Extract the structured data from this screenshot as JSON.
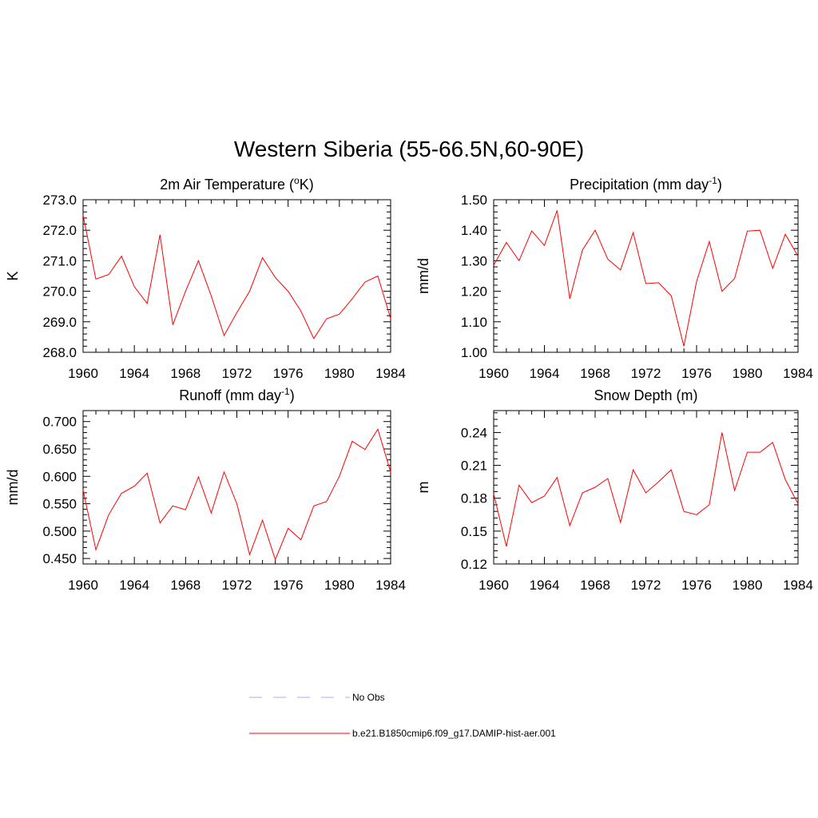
{
  "title": "Western Siberia (55-66.5N,60-90E)",
  "colors": {
    "model": "#ff0000",
    "obs": "#aaaaff"
  },
  "legend": {
    "position": "bottom",
    "items": [
      {
        "label": "No Obs",
        "style": "dashed",
        "color": "#aaaaff"
      },
      {
        "label": "b.e21.B1850cmip6.f09_g17.DAMIP-hist-aer.001",
        "style": "solid",
        "color": "#ff0000"
      }
    ]
  },
  "chart_data": [
    {
      "type": "line",
      "title": "2m Air Temperature (",
      "title_sup": "o",
      "title_tail": "K)",
      "ylabel": "K",
      "xlim": [
        1960,
        1984
      ],
      "ylim": [
        268.0,
        273.0
      ],
      "xticks": [
        "1960",
        "1964",
        "1968",
        "1972",
        "1976",
        "1980",
        "1984"
      ],
      "yticks": [
        "268.0",
        "269.0",
        "270.0",
        "271.0",
        "272.0",
        "273.0"
      ],
      "x": [
        1960,
        1961,
        1962,
        1963,
        1964,
        1965,
        1966,
        1967,
        1968,
        1969,
        1970,
        1971,
        1972,
        1973,
        1974,
        1975,
        1976,
        1977,
        1978,
        1979,
        1980,
        1981,
        1982,
        1983,
        1984
      ],
      "values": [
        272.5,
        270.4,
        270.55,
        271.15,
        270.15,
        269.6,
        271.85,
        268.9,
        270.0,
        271.0,
        269.85,
        268.55,
        269.3,
        270.0,
        271.1,
        270.45,
        270.0,
        269.35,
        268.45,
        269.1,
        269.25,
        269.75,
        270.3,
        270.5,
        269.1
      ]
    },
    {
      "type": "line",
      "title": "Precipitation (mm day",
      "title_sup": "-1",
      "title_tail": ")",
      "ylabel": "mm/d",
      "xlim": [
        1960,
        1984
      ],
      "ylim": [
        1.0,
        1.5
      ],
      "xticks": [
        "1960",
        "1964",
        "1968",
        "1972",
        "1976",
        "1980",
        "1984"
      ],
      "yticks": [
        "1.00",
        "1.10",
        "1.20",
        "1.30",
        "1.40",
        "1.50"
      ],
      "x": [
        1960,
        1961,
        1962,
        1963,
        1964,
        1965,
        1966,
        1967,
        1968,
        1969,
        1970,
        1971,
        1972,
        1973,
        1974,
        1975,
        1976,
        1977,
        1978,
        1979,
        1980,
        1981,
        1982,
        1983,
        1984
      ],
      "values": [
        1.285,
        1.36,
        1.3,
        1.398,
        1.35,
        1.465,
        1.175,
        1.335,
        1.4,
        1.305,
        1.27,
        1.392,
        1.225,
        1.228,
        1.185,
        1.02,
        1.232,
        1.363,
        1.2,
        1.242,
        1.397,
        1.4,
        1.275,
        1.387,
        1.315
      ]
    },
    {
      "type": "line",
      "title": "Runoff (mm day",
      "title_sup": "-1",
      "title_tail": ")",
      "ylabel": "mm/d",
      "xlim": [
        1960,
        1984
      ],
      "ylim": [
        0.44,
        0.72
      ],
      "xticks": [
        "1960",
        "1964",
        "1968",
        "1972",
        "1976",
        "1980",
        "1984"
      ],
      "yticks": [
        "0.450",
        "0.500",
        "0.550",
        "0.600",
        "0.650",
        "0.700"
      ],
      "x": [
        1960,
        1961,
        1962,
        1963,
        1964,
        1965,
        1966,
        1967,
        1968,
        1969,
        1970,
        1971,
        1972,
        1973,
        1974,
        1975,
        1976,
        1977,
        1978,
        1979,
        1980,
        1981,
        1982,
        1983,
        1984
      ],
      "values": [
        0.575,
        0.466,
        0.53,
        0.569,
        0.582,
        0.606,
        0.515,
        0.546,
        0.539,
        0.599,
        0.533,
        0.608,
        0.55,
        0.457,
        0.52,
        0.448,
        0.505,
        0.484,
        0.546,
        0.554,
        0.6,
        0.664,
        0.649,
        0.686,
        0.608
      ]
    },
    {
      "type": "line",
      "title": "Snow Depth (m)",
      "title_sup": "",
      "title_tail": "",
      "ylabel": "m",
      "xlim": [
        1960,
        1984
      ],
      "ylim": [
        0.12,
        0.26
      ],
      "xticks": [
        "1960",
        "1964",
        "1968",
        "1972",
        "1976",
        "1980",
        "1984"
      ],
      "yticks": [
        "0.12",
        "0.15",
        "0.18",
        "0.21",
        "0.24"
      ],
      "x": [
        1960,
        1961,
        1962,
        1963,
        1964,
        1965,
        1966,
        1967,
        1968,
        1969,
        1970,
        1971,
        1972,
        1973,
        1974,
        1975,
        1976,
        1977,
        1978,
        1979,
        1980,
        1981,
        1982,
        1983,
        1984
      ],
      "values": [
        0.184,
        0.136,
        0.192,
        0.176,
        0.182,
        0.199,
        0.155,
        0.185,
        0.19,
        0.198,
        0.158,
        0.206,
        0.185,
        0.195,
        0.206,
        0.168,
        0.165,
        0.174,
        0.24,
        0.187,
        0.222,
        0.222,
        0.231,
        0.197,
        0.175
      ]
    }
  ]
}
